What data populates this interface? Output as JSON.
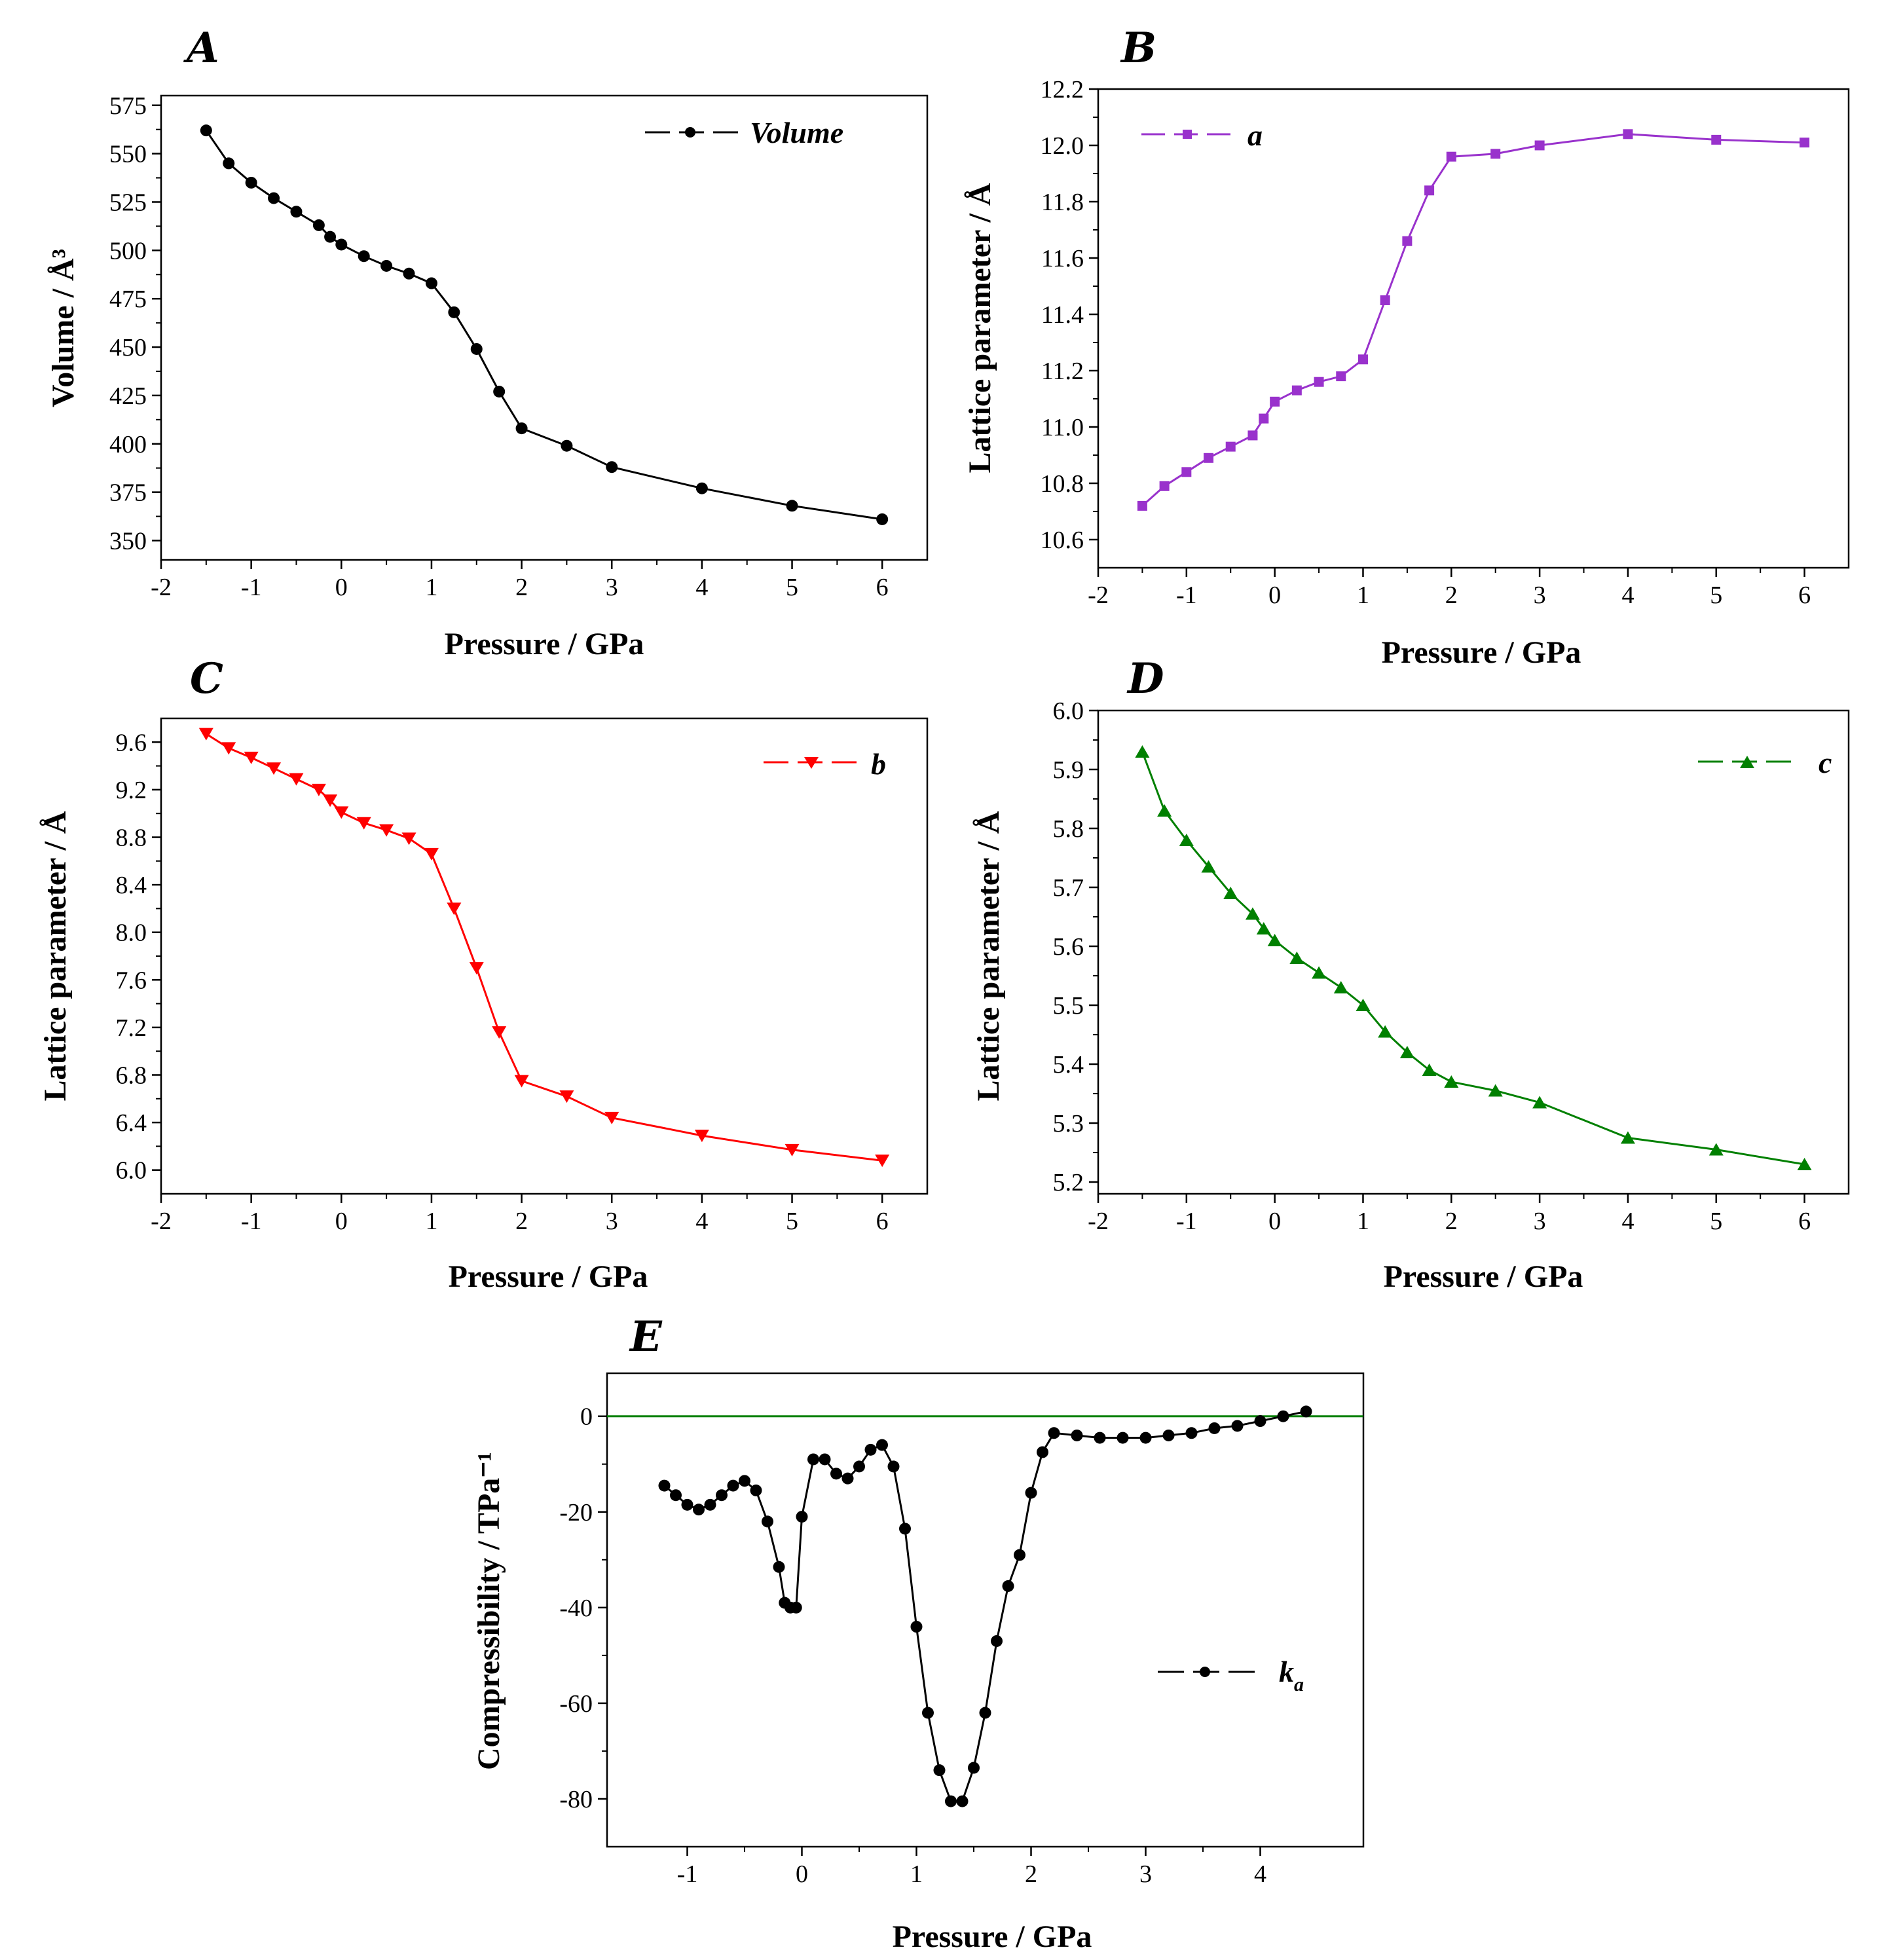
{
  "chart_data": [
    {
      "id": "A",
      "panel_label": "A",
      "type": "line",
      "marker": "circle",
      "color": "#000000",
      "xlabel": "Pressure / GPa",
      "ylabel": "Volume / Å³",
      "xlim": [
        -2,
        6.5
      ],
      "ylim": [
        340,
        580
      ],
      "xticks": [
        -2,
        -1,
        0,
        1,
        2,
        3,
        4,
        5,
        6
      ],
      "xtick_labels": [
        "-2",
        "-1",
        "0",
        "1",
        "2",
        "3",
        "4",
        "5",
        "6"
      ],
      "yticks": [
        350,
        375,
        400,
        425,
        450,
        475,
        500,
        525,
        550,
        575
      ],
      "ytick_labels": [
        "350",
        "375",
        "400",
        "425",
        "450",
        "475",
        "500",
        "525",
        "550",
        "575"
      ],
      "legend": "Volume",
      "legend_position": "top-right",
      "series": [
        {
          "name": "Volume",
          "x": [
            -1.5,
            -1.25,
            -1.0,
            -0.75,
            -0.5,
            -0.25,
            -0.125,
            0.0,
            0.25,
            0.5,
            0.75,
            1.0,
            1.25,
            1.5,
            1.75,
            2.0,
            2.5,
            3.0,
            4.0,
            5.0,
            6.0
          ],
          "y": [
            562,
            545,
            535,
            527,
            520,
            513,
            507,
            503,
            497,
            492,
            488,
            483,
            468,
            449,
            427,
            408,
            399,
            388,
            377,
            368,
            361
          ]
        }
      ]
    },
    {
      "id": "B",
      "panel_label": "B",
      "type": "line",
      "marker": "square",
      "color": "#9932cc",
      "xlabel": "Pressure / GPa",
      "ylabel": "Lattice parameter / Å",
      "xlim": [
        -2,
        6.5
      ],
      "ylim": [
        10.5,
        12.2
      ],
      "xticks": [
        -2,
        -1,
        0,
        1,
        2,
        3,
        4,
        5,
        6
      ],
      "xtick_labels": [
        "-2",
        "-1",
        "0",
        "1",
        "2",
        "3",
        "4",
        "5",
        "6"
      ],
      "yticks": [
        10.6,
        10.8,
        11.0,
        11.2,
        11.4,
        11.6,
        11.8,
        12.0,
        12.2
      ],
      "ytick_labels": [
        "10.6",
        "10.8",
        "11.0",
        "11.2",
        "11.4",
        "11.6",
        "11.8",
        "12.0",
        "12.2"
      ],
      "legend": "a",
      "legend_position": "top-left",
      "series": [
        {
          "name": "a",
          "x": [
            -1.5,
            -1.25,
            -1.0,
            -0.75,
            -0.5,
            -0.25,
            -0.125,
            0.0,
            0.25,
            0.5,
            0.75,
            1.0,
            1.25,
            1.5,
            1.75,
            2.0,
            2.5,
            3.0,
            4.0,
            5.0,
            6.0
          ],
          "y": [
            10.72,
            10.79,
            10.84,
            10.89,
            10.93,
            10.97,
            11.03,
            11.09,
            11.13,
            11.16,
            11.18,
            11.24,
            11.45,
            11.66,
            11.84,
            11.96,
            11.97,
            12.0,
            12.04,
            12.02,
            12.01
          ]
        }
      ]
    },
    {
      "id": "C",
      "panel_label": "C",
      "type": "line",
      "marker": "triangle-down",
      "color": "#ff0000",
      "xlabel": "Pressure / GPa",
      "ylabel": "Lattice parameter / Å",
      "xlim": [
        -2,
        6.5
      ],
      "ylim": [
        5.8,
        9.8
      ],
      "xticks": [
        -2,
        -1,
        0,
        1,
        2,
        3,
        4,
        5,
        6
      ],
      "xtick_labels": [
        "-2",
        "-1",
        "0",
        "1",
        "2",
        "3",
        "4",
        "5",
        "6"
      ],
      "yticks": [
        6.0,
        6.4,
        6.8,
        7.2,
        7.6,
        8.0,
        8.4,
        8.8,
        9.2,
        9.6
      ],
      "ytick_labels": [
        "6.0",
        "6.4",
        "6.8",
        "7.2",
        "7.6",
        "8.0",
        "8.4",
        "8.8",
        "9.2",
        "9.6"
      ],
      "legend": "b",
      "legend_position": "top-right",
      "series": [
        {
          "name": "b",
          "x": [
            -1.5,
            -1.25,
            -1.0,
            -0.75,
            -0.5,
            -0.25,
            -0.125,
            0.0,
            0.25,
            0.5,
            0.75,
            1.0,
            1.25,
            1.5,
            1.75,
            2.0,
            2.5,
            3.0,
            4.0,
            5.0,
            6.0
          ],
          "y": [
            9.67,
            9.55,
            9.47,
            9.38,
            9.29,
            9.2,
            9.11,
            9.01,
            8.92,
            8.86,
            8.79,
            8.66,
            8.2,
            7.7,
            7.16,
            6.75,
            6.62,
            6.44,
            6.29,
            6.17,
            6.08
          ]
        }
      ]
    },
    {
      "id": "D",
      "panel_label": "D",
      "type": "line",
      "marker": "triangle-up",
      "color": "#008000",
      "xlabel": "Pressure / GPa",
      "ylabel": "Lattice parameter / Å",
      "xlim": [
        -2,
        6.5
      ],
      "ylim": [
        5.18,
        6.0
      ],
      "xticks": [
        -2,
        -1,
        0,
        1,
        2,
        3,
        4,
        5,
        6
      ],
      "xtick_labels": [
        "-2",
        "-1",
        "0",
        "1",
        "2",
        "3",
        "4",
        "5",
        "6"
      ],
      "yticks": [
        5.2,
        5.3,
        5.4,
        5.5,
        5.6,
        5.7,
        5.8,
        5.9,
        6.0
      ],
      "ytick_labels": [
        "5.2",
        "5.3",
        "5.4",
        "5.5",
        "5.6",
        "5.7",
        "5.8",
        "5.9",
        "6.0"
      ],
      "legend": "c",
      "legend_position": "top-right",
      "series": [
        {
          "name": "c",
          "x": [
            -1.5,
            -1.25,
            -1.0,
            -0.75,
            -0.5,
            -0.25,
            -0.125,
            0.0,
            0.25,
            0.5,
            0.75,
            1.0,
            1.25,
            1.5,
            1.75,
            2.0,
            2.5,
            3.0,
            4.0,
            5.0,
            6.0
          ],
          "y": [
            5.93,
            5.83,
            5.78,
            5.735,
            5.69,
            5.655,
            5.63,
            5.61,
            5.58,
            5.555,
            5.53,
            5.5,
            5.455,
            5.42,
            5.39,
            5.37,
            5.355,
            5.335,
            5.275,
            5.255,
            5.23
          ]
        }
      ]
    },
    {
      "id": "E",
      "panel_label": "E",
      "type": "line",
      "marker": "circle",
      "color": "#000000",
      "xlabel": "Pressure / GPa",
      "ylabel": "Compressibility / TPa⁻¹",
      "xlim": [
        -1.7,
        4.9
      ],
      "ylim": [
        -90,
        9
      ],
      "xticks": [
        -1,
        0,
        1,
        2,
        3,
        4
      ],
      "xtick_labels": [
        "-1",
        "0",
        "1",
        "2",
        "3",
        "4"
      ],
      "yticks": [
        -80,
        -60,
        -40,
        -20,
        0
      ],
      "ytick_labels": [
        "-80",
        "-60",
        "-40",
        "-20",
        "0"
      ],
      "zero_line": {
        "y": 0,
        "color": "#008000"
      },
      "legend": "k",
      "legend_subscript": "a",
      "legend_position": "right",
      "series": [
        {
          "name": "ka",
          "x": [
            -1.2,
            -1.1,
            -1.0,
            -0.9,
            -0.8,
            -0.7,
            -0.6,
            -0.5,
            -0.4,
            -0.3,
            -0.2,
            -0.15,
            -0.1,
            -0.05,
            0.0,
            0.1,
            0.2,
            0.3,
            0.4,
            0.5,
            0.6,
            0.7,
            0.8,
            0.9,
            1.0,
            1.1,
            1.2,
            1.3,
            1.4,
            1.5,
            1.6,
            1.7,
            1.8,
            1.9,
            2.0,
            2.1,
            2.2,
            2.4,
            2.6,
            2.8,
            3.0,
            3.2,
            3.4,
            3.6,
            3.8,
            4.0,
            4.2,
            4.4
          ],
          "y": [
            -14.5,
            -16.5,
            -18.5,
            -19.5,
            -18.5,
            -16.5,
            -14.5,
            -13.5,
            -15.5,
            -22,
            -31.5,
            -39,
            -40,
            -40,
            -21,
            -9,
            -9,
            -12,
            -13,
            -10.5,
            -7,
            -6,
            -10.5,
            -23.5,
            -44,
            -62,
            -74,
            -80.5,
            -80.5,
            -73.5,
            -62,
            -47,
            -35.5,
            -29,
            -16,
            -7.5,
            -3.5,
            -4,
            -4.5,
            -4.5,
            -4.5,
            -4,
            -3.5,
            -2.5,
            -2,
            -1,
            0,
            1
          ]
        }
      ]
    }
  ]
}
